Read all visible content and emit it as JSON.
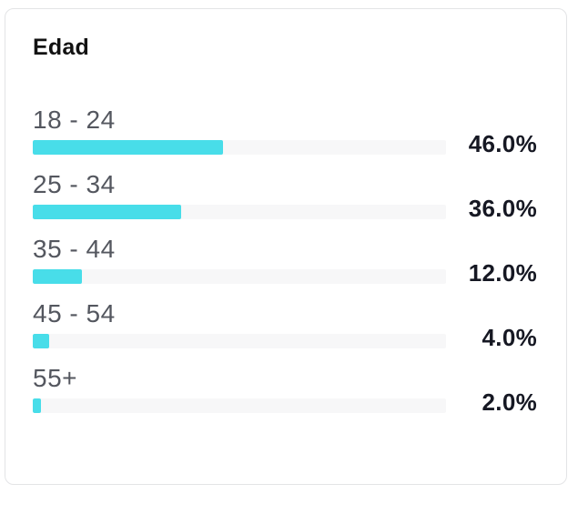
{
  "card": {
    "title": "Edad"
  },
  "chart_data": {
    "type": "bar",
    "orientation": "horizontal",
    "title": "Edad",
    "categories": [
      "18 - 24",
      "25 - 34",
      "35 - 44",
      "45 - 54",
      "55+"
    ],
    "values": [
      46.0,
      36.0,
      12.0,
      4.0,
      2.0
    ],
    "value_labels": [
      "46.0%",
      "36.0%",
      "12.0%",
      "4.0%",
      "2.0%"
    ],
    "unit": "%",
    "xlim": [
      0,
      100
    ],
    "grid": false,
    "legend": false,
    "colors": {
      "bar_fill": "#48DDE9",
      "bar_track": "#F7F7F8",
      "category_label": "#54575F",
      "value_label": "#161823",
      "title": "#121212",
      "card_border": "#E3E4E6",
      "card_background": "#FFFFFF"
    }
  }
}
